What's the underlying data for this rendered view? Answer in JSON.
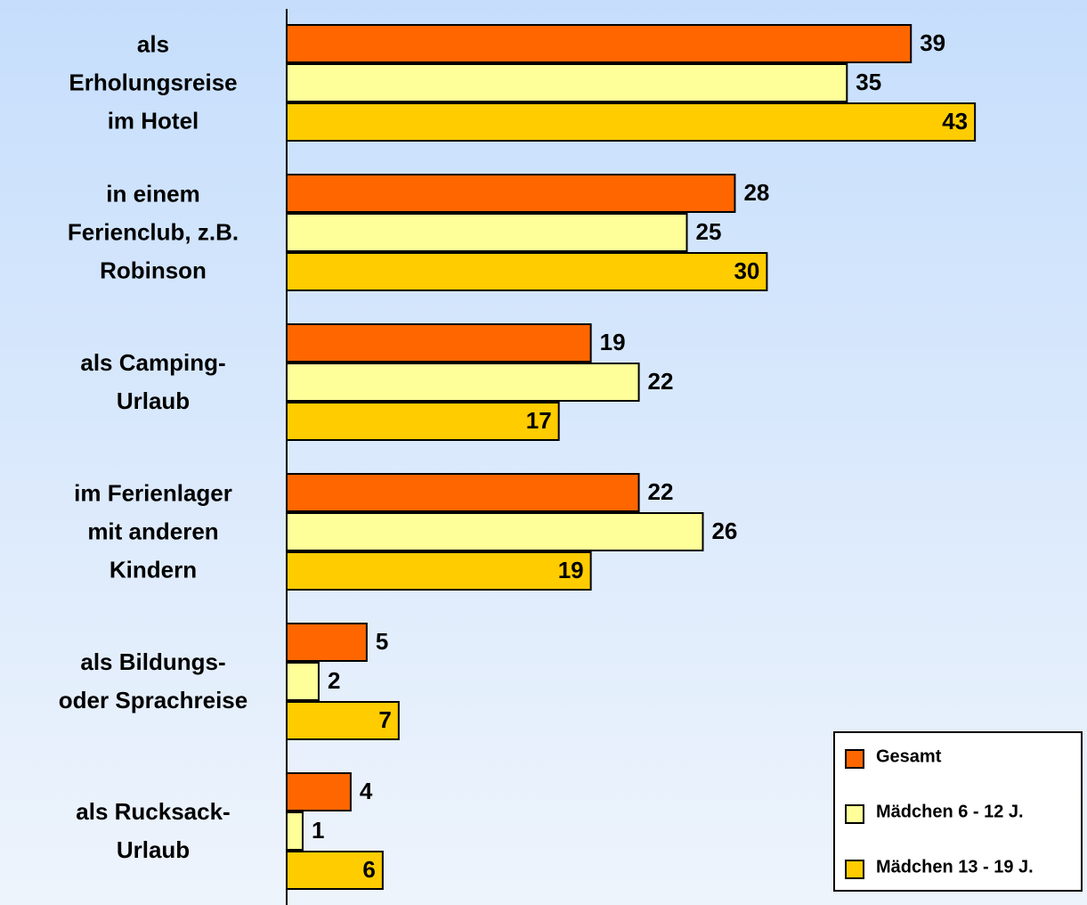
{
  "chart_data": {
    "type": "bar",
    "orientation": "horizontal",
    "categories": [
      "als\nErholungsreise\nim Hotel",
      "in einem\nFerienclub, z.B.\nRobinson",
      "als Camping-\nUrlaub",
      "im Ferienlager\nmit anderen\nKindern",
      "als Bildungs-\noder Sprachreise",
      "als Rucksack-\nUrlaub"
    ],
    "series": [
      {
        "name": "Gesamt",
        "color": "#ff6600",
        "values": [
          39,
          28,
          19,
          22,
          5,
          4
        ]
      },
      {
        "name": "Mädchen 6 - 12 J.",
        "color": "#ffff99",
        "values": [
          35,
          25,
          22,
          26,
          2,
          1
        ]
      },
      {
        "name": "Mädchen 13 - 19 J.",
        "color": "#ffcc00",
        "values": [
          43,
          30,
          17,
          19,
          7,
          6
        ]
      }
    ],
    "xlim": [
      0,
      50
    ],
    "legend": "lower right"
  }
}
